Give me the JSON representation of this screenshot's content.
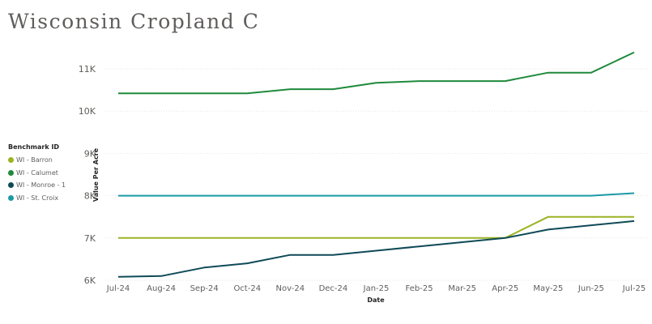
{
  "title": "Wisconsin Cropland C",
  "chart_data": {
    "type": "line",
    "x": [
      "Jul-24",
      "Aug-24",
      "Sep-24",
      "Oct-24",
      "Nov-24",
      "Dec-24",
      "Jan-25",
      "Feb-25",
      "Mar-25",
      "Apr-25",
      "May-25",
      "Jun-25",
      "Jul-25"
    ],
    "xlabel": "Date",
    "ylabel": "Value Per Acre",
    "ylim": [
      6000,
      11500
    ],
    "yticks": [
      6000,
      7000,
      8000,
      9000,
      10000,
      11000
    ],
    "ytick_labels": [
      "6K",
      "7K",
      "8K",
      "9K",
      "10K",
      "11K"
    ],
    "grid": true,
    "legend": {
      "title": "Benchmark ID",
      "placement": "left"
    },
    "series": [
      {
        "name": "WI - Barron",
        "color": "#9bb325",
        "values": [
          7000,
          7000,
          7000,
          7000,
          7000,
          7000,
          7000,
          7000,
          7000,
          7000,
          7500,
          7500,
          7500
        ]
      },
      {
        "name": "WI - Calumet",
        "color": "#1f8a3c",
        "values": [
          10420,
          10420,
          10420,
          10420,
          10520,
          10520,
          10670,
          10710,
          10710,
          10710,
          10910,
          10910,
          11390
        ]
      },
      {
        "name": "WI - Monroe - 1",
        "color": "#0e4a57",
        "values": [
          6080,
          6100,
          6300,
          6400,
          6600,
          6600,
          6700,
          6800,
          6900,
          7000,
          7200,
          7300,
          7400
        ]
      },
      {
        "name": "WI - St. Croix",
        "color": "#1a9aa6",
        "values": [
          8000,
          8000,
          8000,
          8000,
          8000,
          8000,
          8000,
          8000,
          8000,
          8000,
          8000,
          8000,
          8060
        ]
      }
    ]
  }
}
